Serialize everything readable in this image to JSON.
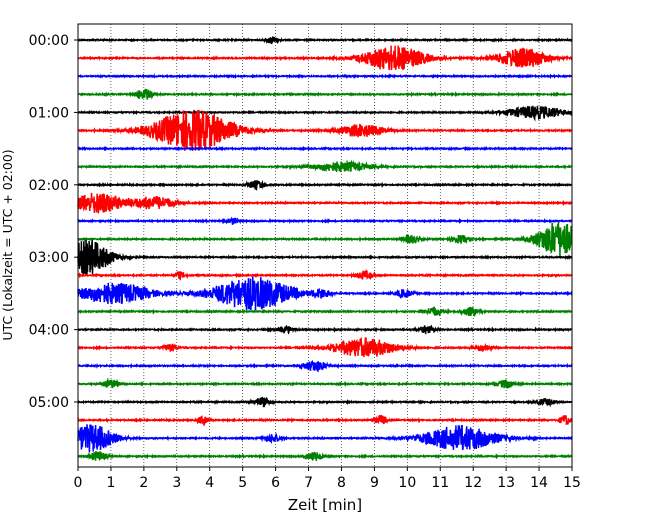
{
  "chart_data": {
    "type": "line",
    "title": "",
    "xlabel": "Zeit  [min]",
    "ylabel": "UTC (Lokalzeit = UTC + 02:00)",
    "xlim": [
      0,
      15
    ],
    "x_ticks": [
      "0",
      "1",
      "2",
      "3",
      "4",
      "5",
      "6",
      "7",
      "8",
      "9",
      "10",
      "11",
      "12",
      "13",
      "14",
      "15"
    ],
    "y_ticks": [
      "00:00",
      "01:00",
      "02:00",
      "03:00",
      "04:00",
      "05:00"
    ],
    "grid": "vertical dotted",
    "trace_colors": [
      "#000000",
      "#ff0000",
      "#0000ff",
      "#008000"
    ],
    "traces": [
      {
        "start": "00:00",
        "events": [
          {
            "t": 5.9,
            "amp": 0.5,
            "dur": 0.2
          }
        ]
      },
      {
        "start": "00:15",
        "events": [
          {
            "t": 9.6,
            "amp": 1.8,
            "dur": 1.1
          },
          {
            "t": 13.5,
            "amp": 1.4,
            "dur": 0.9
          }
        ]
      },
      {
        "start": "00:30",
        "events": []
      },
      {
        "start": "00:45",
        "events": [
          {
            "t": 2.0,
            "amp": 0.8,
            "dur": 0.3
          }
        ]
      },
      {
        "start": "01:00",
        "events": [
          {
            "t": 13.9,
            "amp": 0.9,
            "dur": 1.0
          }
        ]
      },
      {
        "start": "01:15",
        "events": [
          {
            "t": 3.5,
            "amp": 3.0,
            "dur": 1.4
          },
          {
            "t": 8.6,
            "amp": 0.9,
            "dur": 0.8
          }
        ]
      },
      {
        "start": "01:30",
        "events": []
      },
      {
        "start": "01:45",
        "events": [
          {
            "t": 8.0,
            "amp": 0.7,
            "dur": 1.0
          }
        ]
      },
      {
        "start": "02:00",
        "events": [
          {
            "t": 5.4,
            "amp": 0.6,
            "dur": 0.3
          }
        ]
      },
      {
        "start": "02:15",
        "events": [
          {
            "t": 0.6,
            "amp": 1.5,
            "dur": 0.9
          },
          {
            "t": 2.3,
            "amp": 0.9,
            "dur": 0.8
          }
        ]
      },
      {
        "start": "02:30",
        "events": [
          {
            "t": 4.7,
            "amp": 0.5,
            "dur": 0.2
          }
        ]
      },
      {
        "start": "02:45",
        "events": [
          {
            "t": 10.1,
            "amp": 0.6,
            "dur": 0.3
          },
          {
            "t": 11.6,
            "amp": 0.6,
            "dur": 0.3
          },
          {
            "t": 14.6,
            "amp": 2.5,
            "dur": 0.8
          }
        ]
      },
      {
        "start": "03:00",
        "events": [
          {
            "t": 0.3,
            "amp": 2.5,
            "dur": 0.8
          }
        ]
      },
      {
        "start": "03:15",
        "events": [
          {
            "t": 3.1,
            "amp": 0.5,
            "dur": 0.2
          },
          {
            "t": 8.7,
            "amp": 0.6,
            "dur": 0.3
          }
        ]
      },
      {
        "start": "03:30",
        "events": [
          {
            "t": 1.1,
            "amp": 1.5,
            "dur": 1.3
          },
          {
            "t": 5.3,
            "amp": 2.4,
            "dur": 1.4
          },
          {
            "t": 7.4,
            "amp": 0.6,
            "dur": 0.3
          },
          {
            "t": 9.9,
            "amp": 0.6,
            "dur": 0.3
          }
        ]
      },
      {
        "start": "03:45",
        "events": [
          {
            "t": 10.8,
            "amp": 0.6,
            "dur": 0.3
          },
          {
            "t": 11.9,
            "amp": 0.6,
            "dur": 0.3
          }
        ]
      },
      {
        "start": "04:00",
        "events": [
          {
            "t": 6.3,
            "amp": 0.5,
            "dur": 0.3
          },
          {
            "t": 10.6,
            "amp": 0.5,
            "dur": 0.3
          }
        ]
      },
      {
        "start": "04:15",
        "events": [
          {
            "t": 2.8,
            "amp": 0.6,
            "dur": 0.2
          },
          {
            "t": 8.7,
            "amp": 1.4,
            "dur": 1.1
          },
          {
            "t": 12.3,
            "amp": 0.5,
            "dur": 0.3
          }
        ]
      },
      {
        "start": "04:30",
        "events": [
          {
            "t": 7.2,
            "amp": 0.8,
            "dur": 0.4
          }
        ]
      },
      {
        "start": "04:45",
        "events": [
          {
            "t": 1.0,
            "amp": 0.6,
            "dur": 0.3
          },
          {
            "t": 13.0,
            "amp": 0.6,
            "dur": 0.3
          }
        ]
      },
      {
        "start": "05:00",
        "events": [
          {
            "t": 5.6,
            "amp": 0.6,
            "dur": 0.3
          },
          {
            "t": 14.2,
            "amp": 0.5,
            "dur": 0.3
          }
        ]
      },
      {
        "start": "05:15",
        "events": [
          {
            "t": 3.8,
            "amp": 0.6,
            "dur": 0.2
          },
          {
            "t": 9.2,
            "amp": 0.7,
            "dur": 0.2
          },
          {
            "t": 14.8,
            "amp": 0.7,
            "dur": 0.2
          }
        ]
      },
      {
        "start": "05:30",
        "events": [
          {
            "t": 0.4,
            "amp": 2.0,
            "dur": 0.8
          },
          {
            "t": 5.9,
            "amp": 0.6,
            "dur": 0.3
          },
          {
            "t": 11.6,
            "amp": 1.8,
            "dur": 1.3
          }
        ]
      },
      {
        "start": "05:45",
        "events": [
          {
            "t": 0.6,
            "amp": 0.7,
            "dur": 0.3
          },
          {
            "t": 7.2,
            "amp": 0.6,
            "dur": 0.3
          }
        ]
      }
    ]
  }
}
